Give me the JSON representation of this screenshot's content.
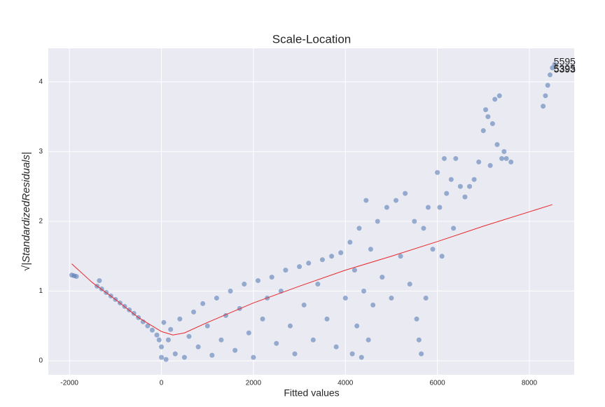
{
  "chart_data": {
    "type": "scatter",
    "title": "Scale-Location",
    "x_label": "Fitted values",
    "y_label": "√|StandardizedResiduals|",
    "xlim": [
      -2460,
      8975
    ],
    "ylim": [
      -0.2,
      4.48
    ],
    "xticks": [
      -2000,
      0,
      2000,
      4000,
      6000,
      8000
    ],
    "yticks": [
      0,
      1,
      2,
      3,
      4
    ],
    "grid": true,
    "color": "#4c72b0",
    "x": [
      -1950,
      -1900,
      -1850,
      -1400,
      -1350,
      -1300,
      -1200,
      -1100,
      -1000,
      -900,
      -800,
      -700,
      -600,
      -500,
      -400,
      -300,
      -200,
      -100,
      -50,
      0,
      50,
      0,
      100,
      150,
      200,
      300,
      400,
      500,
      600,
      700,
      800,
      900,
      1000,
      1100,
      1200,
      1300,
      1400,
      1500,
      1600,
      1700,
      1800,
      1900,
      2000,
      2100,
      2200,
      2300,
      2400,
      2500,
      2600,
      2700,
      2800,
      2900,
      3000,
      3100,
      3200,
      3300,
      3400,
      3500,
      3600,
      3700,
      3800,
      3900,
      4000,
      4100,
      4150,
      4200,
      4250,
      4300,
      4350,
      4400,
      4450,
      4500,
      4550,
      4600,
      4700,
      4800,
      4900,
      5000,
      5100,
      5200,
      5300,
      5400,
      5500,
      5550,
      5600,
      5650,
      5700,
      5750,
      5800,
      5900,
      6000,
      6050,
      6100,
      6150,
      6200,
      6300,
      6350,
      6400,
      6500,
      6600,
      6700,
      6800,
      6900,
      7000,
      7050,
      7100,
      7150,
      7200,
      7250,
      7300,
      7350,
      7400,
      7450,
      7500,
      7600,
      8300,
      8350,
      8400,
      8450,
      8500,
      8550
    ],
    "values": [
      1.23,
      1.22,
      1.21,
      1.07,
      1.15,
      1.03,
      0.98,
      0.93,
      0.88,
      0.83,
      0.78,
      0.73,
      0.68,
      0.62,
      0.56,
      0.5,
      0.44,
      0.37,
      0.3,
      0.2,
      0.55,
      0.05,
      0.02,
      0.3,
      0.45,
      0.1,
      0.6,
      0.05,
      0.35,
      0.7,
      0.2,
      0.82,
      0.5,
      0.08,
      0.9,
      0.3,
      0.65,
      1.0,
      0.15,
      0.75,
      1.1,
      0.4,
      0.05,
      1.15,
      0.6,
      0.9,
      1.2,
      0.25,
      1.0,
      1.3,
      0.5,
      0.1,
      1.35,
      0.8,
      1.4,
      0.3,
      1.1,
      1.45,
      0.6,
      1.5,
      0.2,
      1.55,
      0.9,
      1.7,
      0.1,
      1.3,
      0.5,
      1.9,
      0.05,
      1.0,
      2.3,
      0.3,
      1.6,
      0.8,
      2.0,
      1.2,
      2.2,
      0.9,
      2.3,
      1.5,
      2.4,
      1.1,
      2.0,
      0.6,
      0.3,
      0.1,
      1.9,
      0.9,
      2.2,
      1.6,
      2.7,
      2.2,
      1.5,
      2.9,
      2.4,
      2.6,
      1.9,
      2.9,
      2.5,
      2.35,
      2.5,
      2.6,
      2.85,
      3.3,
      3.6,
      3.5,
      2.8,
      3.4,
      3.75,
      3.1,
      3.8,
      2.9,
      3.0,
      2.9,
      2.85,
      3.65,
      3.8,
      3.95,
      4.1,
      4.2,
      4.25
    ],
    "lowess": {
      "color": "#e8262b",
      "x": [
        -1950,
        -1500,
        -1000,
        -500,
        0,
        250,
        500,
        1000,
        2000,
        3000,
        4000,
        5000,
        6000,
        7000,
        8500
      ],
      "values": [
        1.39,
        1.12,
        0.88,
        0.62,
        0.42,
        0.37,
        0.4,
        0.55,
        0.83,
        1.07,
        1.3,
        1.5,
        1.71,
        1.93,
        2.24
      ]
    },
    "annotations": [
      {
        "text": "5595",
        "x": 8500,
        "y": 4.28
      },
      {
        "text": "5395",
        "x": 8500,
        "y": 4.18
      },
      {
        "text": "5393",
        "x": 8500,
        "y": 4.17
      }
    ]
  }
}
